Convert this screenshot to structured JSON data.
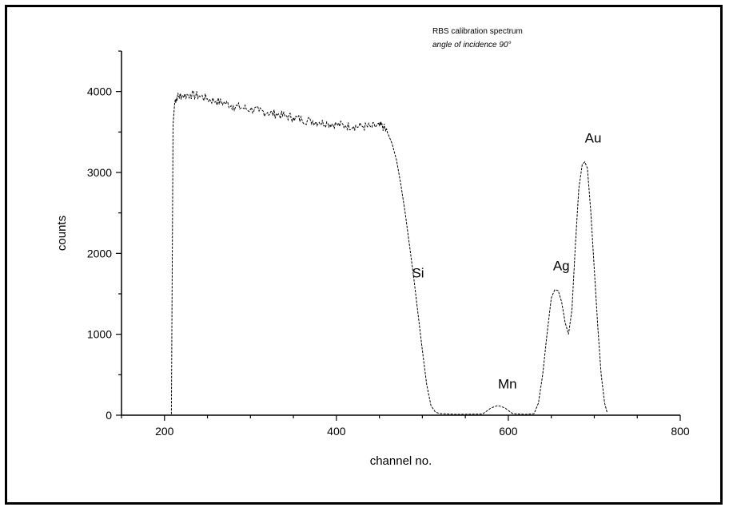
{
  "chart_data": {
    "type": "line",
    "title": "",
    "xlabel": "channel no.",
    "ylabel": "counts",
    "xlim": [
      150,
      800
    ],
    "ylim": [
      0,
      4500
    ],
    "x_ticks": [
      200,
      400,
      600,
      800
    ],
    "y_ticks": [
      0,
      1000,
      2000,
      3000,
      4000
    ],
    "grid": false,
    "legend": "none",
    "annotations": [
      {
        "name": "note-line-1",
        "text": "RBS calibration spectrum"
      },
      {
        "name": "note-line-2",
        "text": "angle of incidence 90°"
      },
      {
        "name": "label-si",
        "text": "Si",
        "x": 488,
        "y": 1700
      },
      {
        "name": "label-mn",
        "text": "Mn",
        "x": 588,
        "y": 330
      },
      {
        "name": "label-ag",
        "text": "Ag",
        "x": 652,
        "y": 1790
      },
      {
        "name": "label-au",
        "text": "Au",
        "x": 689,
        "y": 3370
      }
    ],
    "series": [
      {
        "color": "#000000",
        "points": [
          [
            205,
            0
          ],
          [
            208,
            0
          ],
          [
            210,
            3600
          ],
          [
            212,
            3880
          ],
          [
            215,
            3940
          ],
          [
            220,
            3950
          ],
          [
            230,
            3960
          ],
          [
            240,
            3950
          ],
          [
            250,
            3910
          ],
          [
            260,
            3880
          ],
          [
            270,
            3860
          ],
          [
            280,
            3820
          ],
          [
            290,
            3800
          ],
          [
            300,
            3780
          ],
          [
            310,
            3760
          ],
          [
            320,
            3740
          ],
          [
            330,
            3720
          ],
          [
            340,
            3700
          ],
          [
            350,
            3680
          ],
          [
            360,
            3650
          ],
          [
            370,
            3640
          ],
          [
            380,
            3620
          ],
          [
            390,
            3610
          ],
          [
            400,
            3590
          ],
          [
            410,
            3580
          ],
          [
            420,
            3570
          ],
          [
            430,
            3570
          ],
          [
            440,
            3560
          ],
          [
            450,
            3580
          ],
          [
            455,
            3560
          ],
          [
            460,
            3480
          ],
          [
            465,
            3350
          ],
          [
            470,
            3150
          ],
          [
            475,
            2850
          ],
          [
            480,
            2500
          ],
          [
            485,
            2100
          ],
          [
            490,
            1700
          ],
          [
            495,
            1250
          ],
          [
            500,
            800
          ],
          [
            505,
            380
          ],
          [
            510,
            120
          ],
          [
            515,
            40
          ],
          [
            520,
            20
          ],
          [
            540,
            10
          ],
          [
            570,
            15
          ],
          [
            580,
            90
          ],
          [
            588,
            120
          ],
          [
            596,
            90
          ],
          [
            605,
            20
          ],
          [
            620,
            10
          ],
          [
            630,
            20
          ],
          [
            635,
            150
          ],
          [
            640,
            500
          ],
          [
            645,
            1000
          ],
          [
            650,
            1450
          ],
          [
            654,
            1550
          ],
          [
            658,
            1540
          ],
          [
            662,
            1400
          ],
          [
            666,
            1150
          ],
          [
            670,
            1000
          ],
          [
            674,
            1300
          ],
          [
            678,
            2100
          ],
          [
            682,
            2800
          ],
          [
            686,
            3100
          ],
          [
            689,
            3130
          ],
          [
            692,
            3050
          ],
          [
            696,
            2500
          ],
          [
            700,
            1800
          ],
          [
            704,
            1100
          ],
          [
            708,
            500
          ],
          [
            712,
            150
          ],
          [
            715,
            30
          ]
        ]
      }
    ]
  }
}
